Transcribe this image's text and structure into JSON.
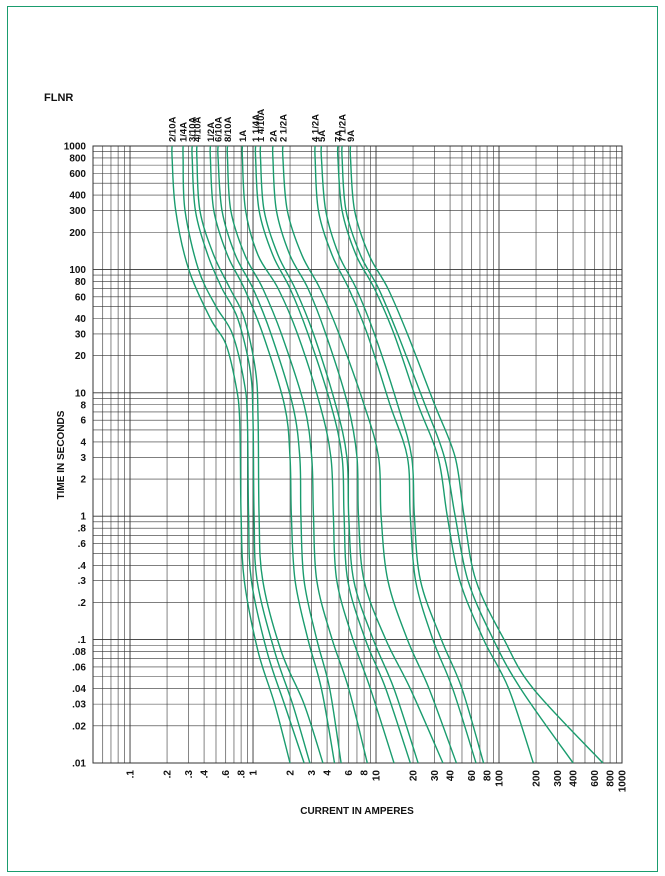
{
  "page": {
    "frame_color": "#1a9c6e"
  },
  "chart_data": {
    "type": "line",
    "title": "FLNR",
    "xlabel": "CURRENT IN AMPERES",
    "ylabel": "TIME IN SECONDS",
    "x_scale": "log",
    "y_scale": "log",
    "xlim": [
      0.05,
      1000
    ],
    "ylim": [
      0.01,
      1000
    ],
    "grid": true,
    "x_ticks": [
      {
        "value": 0.1,
        "label": ".1"
      },
      {
        "value": 0.2,
        "label": ".2"
      },
      {
        "value": 0.3,
        "label": ".3"
      },
      {
        "value": 0.4,
        "label": ".4"
      },
      {
        "value": 0.6,
        "label": ".6"
      },
      {
        "value": 0.8,
        "label": ".8"
      },
      {
        "value": 1,
        "label": "1"
      },
      {
        "value": 2,
        "label": "2"
      },
      {
        "value": 3,
        "label": "3"
      },
      {
        "value": 4,
        "label": "4"
      },
      {
        "value": 6,
        "label": "6"
      },
      {
        "value": 8,
        "label": "8"
      },
      {
        "value": 10,
        "label": "10"
      },
      {
        "value": 20,
        "label": "20"
      },
      {
        "value": 30,
        "label": "30"
      },
      {
        "value": 40,
        "label": "40"
      },
      {
        "value": 60,
        "label": "60"
      },
      {
        "value": 80,
        "label": "80"
      },
      {
        "value": 100,
        "label": "100"
      },
      {
        "value": 200,
        "label": "200"
      },
      {
        "value": 300,
        "label": "300"
      },
      {
        "value": 400,
        "label": "400"
      },
      {
        "value": 600,
        "label": "600"
      },
      {
        "value": 800,
        "label": "800"
      },
      {
        "value": 1000,
        "label": "1000"
      }
    ],
    "y_ticks": [
      {
        "value": 0.01,
        "label": ".01"
      },
      {
        "value": 0.02,
        "label": ".02"
      },
      {
        "value": 0.03,
        "label": ".03"
      },
      {
        "value": 0.04,
        "label": ".04"
      },
      {
        "value": 0.06,
        "label": ".06"
      },
      {
        "value": 0.08,
        "label": ".08"
      },
      {
        "value": 0.1,
        "label": ".1"
      },
      {
        "value": 0.2,
        "label": ".2"
      },
      {
        "value": 0.3,
        "label": ".3"
      },
      {
        "value": 0.4,
        "label": ".4"
      },
      {
        "value": 0.6,
        "label": ".6"
      },
      {
        "value": 0.8,
        "label": ".8"
      },
      {
        "value": 1,
        "label": "1"
      },
      {
        "value": 2,
        "label": "2"
      },
      {
        "value": 3,
        "label": "3"
      },
      {
        "value": 4,
        "label": "4"
      },
      {
        "value": 6,
        "label": "6"
      },
      {
        "value": 8,
        "label": "8"
      },
      {
        "value": 10,
        "label": "10"
      },
      {
        "value": 20,
        "label": "20"
      },
      {
        "value": 30,
        "label": "30"
      },
      {
        "value": 40,
        "label": "40"
      },
      {
        "value": 60,
        "label": "60"
      },
      {
        "value": 80,
        "label": "80"
      },
      {
        "value": 100,
        "label": "100"
      },
      {
        "value": 200,
        "label": "200"
      },
      {
        "value": 300,
        "label": "300"
      },
      {
        "value": 400,
        "label": "400"
      },
      {
        "value": 600,
        "label": "600"
      },
      {
        "value": 800,
        "label": "800"
      },
      {
        "value": 1000,
        "label": "1000"
      }
    ],
    "line_color": "#1a9c6e",
    "grid_color": "#333333",
    "series": [
      {
        "name": "2/10A",
        "points": [
          [
            0.22,
            1000
          ],
          [
            0.22,
            800
          ],
          [
            0.235,
            300
          ],
          [
            0.3,
            100
          ],
          [
            0.45,
            40
          ],
          [
            0.6,
            25
          ],
          [
            0.72,
            12
          ],
          [
            0.78,
            6
          ],
          [
            0.8,
            1
          ],
          [
            0.85,
            0.3
          ],
          [
            1.1,
            0.08
          ],
          [
            1.5,
            0.03
          ],
          [
            2.0,
            0.01
          ]
        ]
      },
      {
        "name": "1/4A",
        "points": [
          [
            0.27,
            1000
          ],
          [
            0.27,
            800
          ],
          [
            0.28,
            300
          ],
          [
            0.36,
            100
          ],
          [
            0.5,
            50
          ],
          [
            0.68,
            30
          ],
          [
            0.85,
            12
          ],
          [
            0.9,
            6
          ],
          [
            0.92,
            1
          ],
          [
            0.97,
            0.3
          ],
          [
            1.3,
            0.08
          ],
          [
            1.8,
            0.03
          ],
          [
            2.6,
            0.01
          ]
        ]
      },
      {
        "name": "3/10A",
        "points": [
          [
            0.32,
            1000
          ],
          [
            0.32,
            800
          ],
          [
            0.34,
            300
          ],
          [
            0.43,
            130
          ],
          [
            0.56,
            70
          ],
          [
            0.75,
            40
          ],
          [
            0.95,
            15
          ],
          [
            1.0,
            6
          ],
          [
            1.02,
            1
          ],
          [
            1.08,
            0.3
          ],
          [
            1.5,
            0.08
          ],
          [
            2.1,
            0.03
          ],
          [
            2.9,
            0.01
          ]
        ]
      },
      {
        "name": "4/10A",
        "points": [
          [
            0.35,
            1000
          ],
          [
            0.35,
            800
          ],
          [
            0.37,
            300
          ],
          [
            0.48,
            130
          ],
          [
            0.65,
            70
          ],
          [
            0.85,
            40
          ],
          [
            1.05,
            15
          ],
          [
            1.1,
            6
          ],
          [
            1.12,
            1
          ],
          [
            1.2,
            0.3
          ],
          [
            1.7,
            0.08
          ],
          [
            2.6,
            0.03
          ],
          [
            3.7,
            0.01
          ]
        ]
      },
      {
        "name": "1/2A",
        "points": [
          [
            0.45,
            1000
          ],
          [
            0.45,
            800
          ],
          [
            0.48,
            300
          ],
          [
            0.62,
            130
          ],
          [
            0.85,
            70
          ],
          [
            1.2,
            30
          ],
          [
            1.8,
            8
          ],
          [
            2.0,
            3
          ],
          [
            2.05,
            1
          ],
          [
            2.2,
            0.3
          ],
          [
            2.8,
            0.1
          ],
          [
            3.6,
            0.04
          ],
          [
            4.6,
            0.01
          ]
        ]
      },
      {
        "name": "6/10A",
        "points": [
          [
            0.52,
            1000
          ],
          [
            0.52,
            800
          ],
          [
            0.56,
            300
          ],
          [
            0.72,
            130
          ],
          [
            1.0,
            70
          ],
          [
            1.4,
            30
          ],
          [
            2.1,
            8
          ],
          [
            2.4,
            3
          ],
          [
            2.45,
            1
          ],
          [
            2.6,
            0.3
          ],
          [
            3.3,
            0.1
          ],
          [
            4.2,
            0.04
          ],
          [
            5.2,
            0.01
          ]
        ]
      },
      {
        "name": "8/10A",
        "points": [
          [
            0.62,
            1000
          ],
          [
            0.62,
            800
          ],
          [
            0.66,
            300
          ],
          [
            0.86,
            130
          ],
          [
            1.2,
            70
          ],
          [
            1.7,
            30
          ],
          [
            2.6,
            8
          ],
          [
            3.0,
            3
          ],
          [
            3.1,
            1
          ],
          [
            3.3,
            0.3
          ],
          [
            4.4,
            0.1
          ],
          [
            6.0,
            0.04
          ],
          [
            8.5,
            0.01
          ]
        ]
      },
      {
        "name": "1A",
        "points": [
          [
            0.82,
            1000
          ],
          [
            0.82,
            800
          ],
          [
            0.87,
            300
          ],
          [
            1.1,
            130
          ],
          [
            1.6,
            70
          ],
          [
            2.3,
            30
          ],
          [
            3.5,
            8
          ],
          [
            4.3,
            3
          ],
          [
            4.5,
            1
          ],
          [
            4.8,
            0.3
          ],
          [
            6.5,
            0.1
          ],
          [
            9.0,
            0.04
          ],
          [
            14.0,
            0.01
          ]
        ]
      },
      {
        "name": "1 1/4A",
        "points": [
          [
            1.05,
            1000
          ],
          [
            1.05,
            800
          ],
          [
            1.12,
            300
          ],
          [
            1.45,
            130
          ],
          [
            2.0,
            70
          ],
          [
            2.8,
            30
          ],
          [
            4.3,
            8
          ],
          [
            5.3,
            3
          ],
          [
            5.5,
            1
          ],
          [
            5.9,
            0.3
          ],
          [
            8.2,
            0.1
          ],
          [
            12,
            0.04
          ],
          [
            19,
            0.01
          ]
        ]
      },
      {
        "name": "1 4/10A",
        "points": [
          [
            1.15,
            1000
          ],
          [
            1.15,
            800
          ],
          [
            1.23,
            300
          ],
          [
            1.6,
            130
          ],
          [
            2.2,
            70
          ],
          [
            3.1,
            30
          ],
          [
            4.7,
            8
          ],
          [
            5.8,
            3
          ],
          [
            6.0,
            1
          ],
          [
            6.6,
            0.3
          ],
          [
            9.5,
            0.1
          ],
          [
            14,
            0.04
          ],
          [
            22,
            0.01
          ]
        ]
      },
      {
        "name": "2A",
        "points": [
          [
            1.45,
            1000
          ],
          [
            1.45,
            800
          ],
          [
            1.55,
            300
          ],
          [
            2.0,
            130
          ],
          [
            2.8,
            70
          ],
          [
            3.9,
            30
          ],
          [
            5.9,
            8
          ],
          [
            7.0,
            3
          ],
          [
            7.2,
            1
          ],
          [
            8.0,
            0.3
          ],
          [
            12,
            0.1
          ],
          [
            19,
            0.04
          ],
          [
            35,
            0.01
          ]
        ]
      },
      {
        "name": "2 1/2A",
        "points": [
          [
            1.75,
            1000
          ],
          [
            1.75,
            800
          ],
          [
            1.9,
            300
          ],
          [
            2.5,
            130
          ],
          [
            3.5,
            70
          ],
          [
            5.0,
            30
          ],
          [
            8.0,
            8
          ],
          [
            10.5,
            3
          ],
          [
            11.0,
            1
          ],
          [
            12.5,
            0.3
          ],
          [
            18,
            0.1
          ],
          [
            27,
            0.04
          ],
          [
            45,
            0.01
          ]
        ]
      },
      {
        "name": "4 1/2A",
        "points": [
          [
            3.2,
            1000
          ],
          [
            3.2,
            800
          ],
          [
            3.4,
            300
          ],
          [
            4.4,
            130
          ],
          [
            6.0,
            70
          ],
          [
            8.5,
            30
          ],
          [
            13,
            8
          ],
          [
            18,
            3
          ],
          [
            19,
            1
          ],
          [
            21,
            0.3
          ],
          [
            29,
            0.1
          ],
          [
            42,
            0.04
          ],
          [
            65,
            0.01
          ]
        ]
      },
      {
        "name": "5A",
        "points": [
          [
            3.6,
            1000
          ],
          [
            3.6,
            800
          ],
          [
            3.9,
            300
          ],
          [
            5.0,
            130
          ],
          [
            6.9,
            70
          ],
          [
            9.7,
            30
          ],
          [
            15,
            8
          ],
          [
            19.5,
            3
          ],
          [
            20.5,
            1
          ],
          [
            23,
            0.3
          ],
          [
            34,
            0.1
          ],
          [
            50,
            0.04
          ],
          [
            75,
            0.01
          ]
        ]
      },
      {
        "name": "7A",
        "points": [
          [
            4.9,
            1000
          ],
          [
            4.9,
            800
          ],
          [
            5.3,
            300
          ],
          [
            6.9,
            130
          ],
          [
            9.7,
            70
          ],
          [
            14,
            30
          ],
          [
            22,
            8
          ],
          [
            32,
            3
          ],
          [
            38,
            1
          ],
          [
            48,
            0.3
          ],
          [
            75,
            0.1
          ],
          [
            120,
            0.04
          ],
          [
            190,
            0.01
          ]
        ]
      },
      {
        "name": "7 1/2A",
        "points": [
          [
            5.3,
            1000
          ],
          [
            5.3,
            800
          ],
          [
            5.7,
            300
          ],
          [
            7.5,
            130
          ],
          [
            10.5,
            70
          ],
          [
            15,
            30
          ],
          [
            25,
            8
          ],
          [
            36,
            3
          ],
          [
            44,
            1
          ],
          [
            56,
            0.3
          ],
          [
            90,
            0.1
          ],
          [
            150,
            0.04
          ],
          [
            400,
            0.01
          ]
        ]
      },
      {
        "name": "9A",
        "points": [
          [
            6.2,
            1000
          ],
          [
            6.2,
            800
          ],
          [
            6.7,
            300
          ],
          [
            8.8,
            130
          ],
          [
            12.5,
            70
          ],
          [
            18,
            30
          ],
          [
            30,
            8
          ],
          [
            44,
            3
          ],
          [
            52,
            1
          ],
          [
            65,
            0.3
          ],
          [
            110,
            0.1
          ],
          [
            190,
            0.04
          ],
          [
            700,
            0.01
          ]
        ]
      }
    ]
  }
}
